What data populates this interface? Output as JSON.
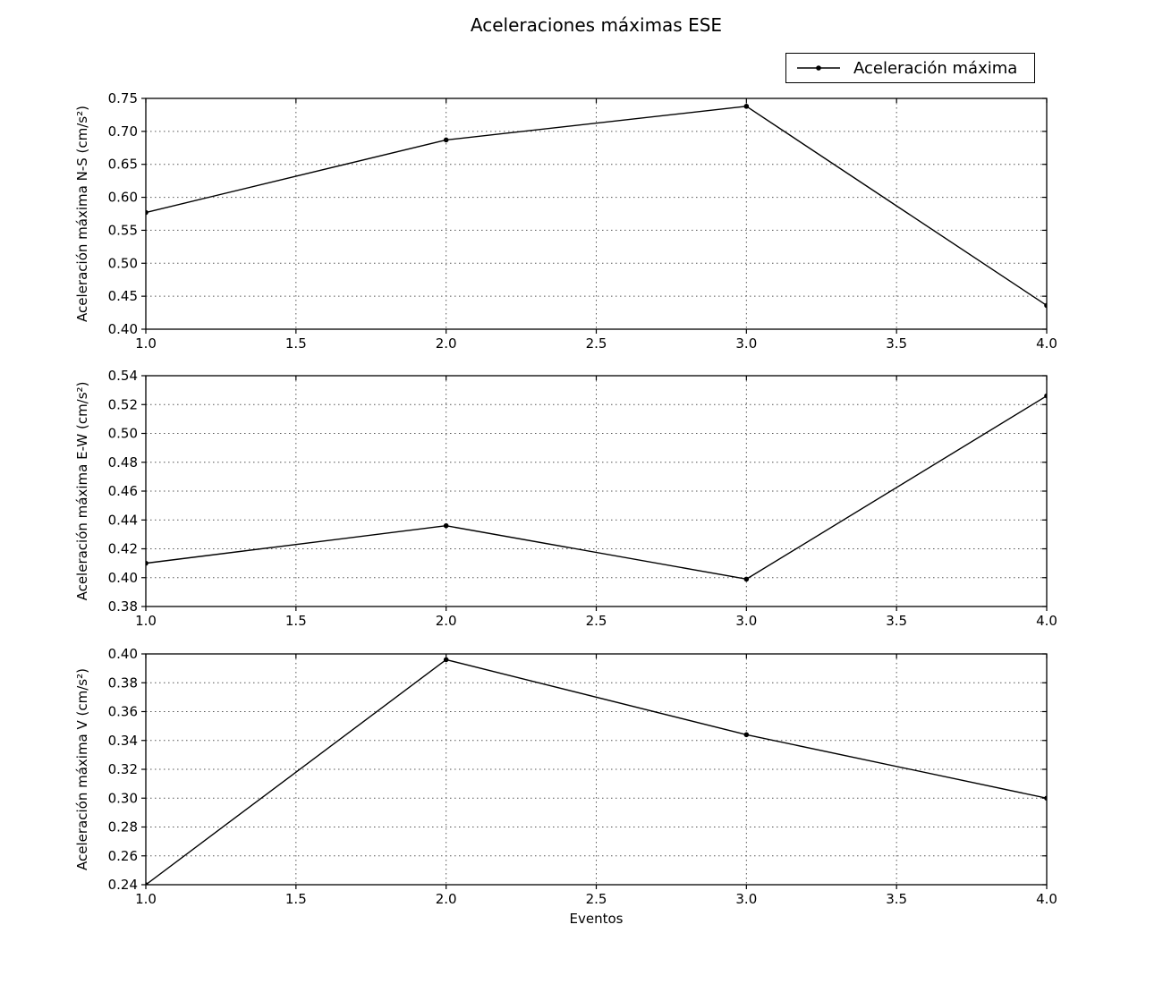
{
  "figure": {
    "title": "Aceleraciones máximas ESE",
    "xlabel": "Eventos",
    "colors": {
      "line": "#000000",
      "grid": "#555555",
      "axis": "#000000",
      "background": "#ffffff"
    }
  },
  "legend": {
    "label": "Aceleración máxima",
    "marker": "dot-on-line",
    "position": "upper-right"
  },
  "chart_data": [
    {
      "type": "line",
      "ylabel": "Aceleración máxima N-S (cm/s²)",
      "x": [
        1.0,
        2.0,
        3.0,
        4.0
      ],
      "series": [
        {
          "name": "Aceleración máxima",
          "values": [
            0.577,
            0.687,
            0.738,
            0.436
          ]
        }
      ],
      "xlim": [
        1.0,
        4.0
      ],
      "ylim": [
        0.4,
        0.75
      ],
      "xticks": [
        "1.0",
        "1.5",
        "2.0",
        "2.5",
        "3.0",
        "3.5",
        "4.0"
      ],
      "yticks": [
        "0.40",
        "0.45",
        "0.50",
        "0.55",
        "0.60",
        "0.65",
        "0.70",
        "0.75"
      ],
      "grid": true,
      "marker": "point",
      "xlabel": ""
    },
    {
      "type": "line",
      "ylabel": "Aceleración máxima E-W (cm/s²)",
      "x": [
        1.0,
        2.0,
        3.0,
        4.0
      ],
      "series": [
        {
          "name": "Aceleración máxima",
          "values": [
            0.41,
            0.436,
            0.399,
            0.526
          ]
        }
      ],
      "xlim": [
        1.0,
        4.0
      ],
      "ylim": [
        0.38,
        0.54
      ],
      "xticks": [
        "1.0",
        "1.5",
        "2.0",
        "2.5",
        "3.0",
        "3.5",
        "4.0"
      ],
      "yticks": [
        "0.38",
        "0.40",
        "0.42",
        "0.44",
        "0.46",
        "0.48",
        "0.50",
        "0.52",
        "0.54"
      ],
      "grid": true,
      "marker": "point",
      "xlabel": ""
    },
    {
      "type": "line",
      "ylabel": "Aceleración máxima V (cm/s²)",
      "x": [
        1.0,
        2.0,
        3.0,
        4.0
      ],
      "series": [
        {
          "name": "Aceleración máxima",
          "values": [
            0.24,
            0.396,
            0.344,
            0.3
          ]
        }
      ],
      "xlim": [
        1.0,
        4.0
      ],
      "ylim": [
        0.24,
        0.4
      ],
      "xticks": [
        "1.0",
        "1.5",
        "2.0",
        "2.5",
        "3.0",
        "3.5",
        "4.0"
      ],
      "yticks": [
        "0.24",
        "0.26",
        "0.28",
        "0.30",
        "0.32",
        "0.34",
        "0.36",
        "0.38",
        "0.40"
      ],
      "grid": true,
      "marker": "point",
      "xlabel": "Eventos"
    }
  ]
}
